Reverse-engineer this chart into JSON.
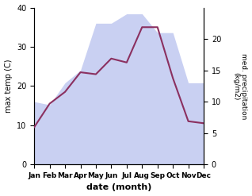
{
  "months": [
    "Jan",
    "Feb",
    "Mar",
    "Apr",
    "May",
    "Jun",
    "Jul",
    "Aug",
    "Sep",
    "Oct",
    "Nov",
    "Dec"
  ],
  "month_positions": [
    0,
    1,
    2,
    3,
    4,
    5,
    6,
    7,
    8,
    9,
    10,
    11
  ],
  "temperature": [
    9.5,
    15.5,
    18.5,
    23.5,
    23.0,
    27.0,
    26.0,
    35.0,
    35.0,
    22.0,
    11.0,
    10.5
  ],
  "precipitation": [
    10.0,
    9.5,
    13.0,
    15.0,
    22.5,
    22.5,
    24.0,
    24.0,
    21.0,
    21.0,
    13.0,
    13.0
  ],
  "temp_color": "#8B3060",
  "precip_fill_color": "#c0c8f0",
  "ylabel_left": "max temp (C)",
  "ylabel_right": "med. precipitation\n(kg/m2)",
  "xlabel": "date (month)",
  "ylim_left": [
    0,
    40
  ],
  "ylim_right": [
    0,
    25
  ],
  "yticks_left": [
    0,
    10,
    20,
    30,
    40
  ],
  "yticks_right": [
    0,
    5,
    10,
    15,
    20
  ],
  "line_width": 1.5,
  "background_color": "#ffffff"
}
